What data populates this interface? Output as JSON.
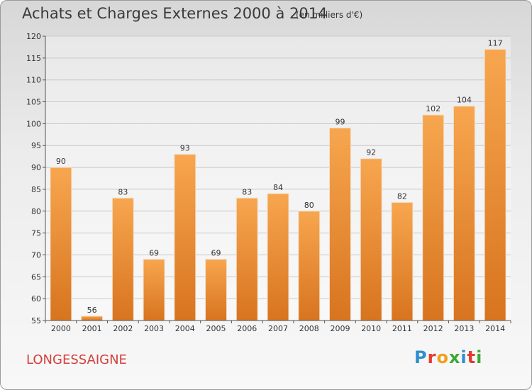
{
  "title": "Achats et Charges Externes 2000 à 2014",
  "unit_note": "(en milliers d'€)",
  "commune": "LONGESSAIGNE",
  "logo": {
    "text": "Proxiti",
    "colors": [
      "#2e8ecf",
      "#e33b2e",
      "#f0a020",
      "#3aa935",
      "#2e8ecf",
      "#e33b2e",
      "#3aa935"
    ]
  },
  "colors": {
    "bar_light": "#f7a64f",
    "bar_dark": "#d8741f",
    "commune_text": "#d33f3c"
  },
  "chart_data": {
    "type": "bar",
    "title": "Achats et Charges Externes 2000 à 2014",
    "categories": [
      "2000",
      "2001",
      "2002",
      "2003",
      "2004",
      "2005",
      "2006",
      "2007",
      "2008",
      "2009",
      "2010",
      "2011",
      "2012",
      "2013",
      "2014"
    ],
    "values": [
      90,
      56,
      83,
      69,
      93,
      69,
      83,
      84,
      80,
      99,
      92,
      82,
      102,
      104,
      117
    ],
    "ylim": [
      55,
      120
    ],
    "yticks": [
      55,
      60,
      65,
      70,
      75,
      80,
      85,
      90,
      95,
      100,
      105,
      110,
      115,
      120
    ],
    "grid": true
  }
}
